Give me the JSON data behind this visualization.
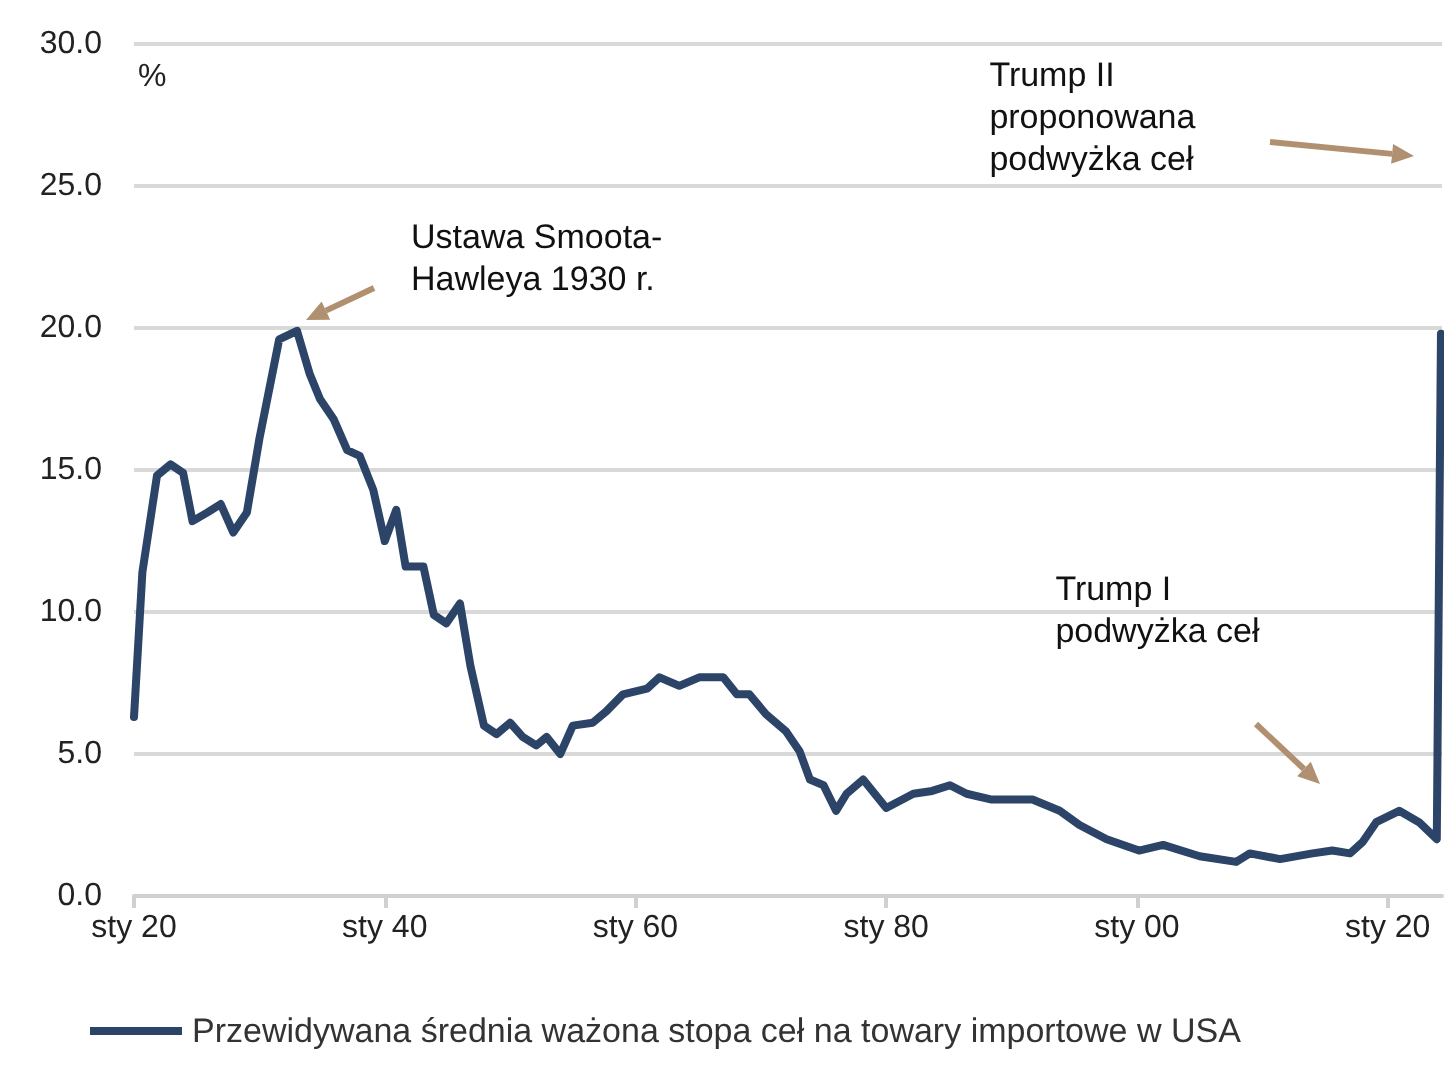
{
  "chart_data": {
    "type": "line",
    "ylabel": "%",
    "annotations": [
      "Ustawa Smoota-\nHawleya 1930 r.",
      "Trump I\npodwyżka ceł",
      "Trump II\nproponowana\npodwyżka ceł"
    ],
    "series": [
      {
        "name": "Przewidywana średnia ważona stopa ceł na towary importowe w USA",
        "color": "#2b4468",
        "x": [
          "1920-01",
          "1920-09",
          "1921-11",
          "1922-12",
          "1923-12",
          "1924-09",
          "1925-11",
          "1926-12",
          "1927-12",
          "1929-01",
          "1930-01",
          "1931-08",
          "1933-01",
          "1934-01",
          "1934-11",
          "1935-12",
          "1937-01",
          "1938-01",
          "1939-02",
          "1940-01",
          "1940-12",
          "1941-09",
          "1943-02",
          "1943-12",
          "1944-12",
          "1946-01",
          "1946-11",
          "1947-12",
          "1948-12",
          "1950-01",
          "1951-01",
          "1952-02",
          "1952-12",
          "1954-01",
          "1955-01",
          "1956-08",
          "1957-09",
          "1959-01",
          "1960-12",
          "1961-12",
          "1963-07",
          "1965-02",
          "1967-01",
          "1968-02",
          "1969-02",
          "1970-06",
          "1972-01",
          "1973-02",
          "1973-12",
          "1975-01",
          "1976-01",
          "1976-11",
          "1978-03",
          "1980-01",
          "1982-03",
          "1983-09",
          "1985-02",
          "1986-06",
          "1988-05",
          "1990-02",
          "1991-09",
          "1993-11",
          "1995-06",
          "1997-08",
          "2000-03",
          "2002-02",
          "2005-01",
          "2007-12",
          "2009-01",
          "2011-06",
          "2014-01",
          "2015-08",
          "2017-01",
          "2018-01",
          "2019-02",
          "2020-12",
          "2022-07",
          "2023-12",
          "2024-04"
        ],
        "values": [
          6.3,
          11.4,
          14.8,
          15.2,
          14.9,
          13.2,
          13.5,
          13.8,
          12.8,
          13.5,
          16.1,
          19.6,
          19.9,
          18.4,
          17.5,
          16.8,
          15.7,
          15.5,
          14.3,
          12.5,
          13.6,
          11.6,
          11.6,
          9.9,
          9.6,
          10.3,
          8.1,
          6.0,
          5.7,
          6.1,
          5.6,
          5.3,
          5.6,
          5.0,
          6.0,
          6.1,
          6.5,
          7.1,
          7.3,
          7.7,
          7.4,
          7.7,
          7.7,
          7.1,
          7.1,
          6.4,
          5.8,
          5.1,
          4.1,
          3.9,
          3.0,
          3.6,
          4.1,
          3.1,
          3.6,
          3.7,
          3.9,
          3.6,
          3.4,
          3.4,
          3.4,
          3.0,
          2.5,
          2.0,
          1.6,
          1.8,
          1.4,
          1.2,
          1.5,
          1.3,
          1.5,
          1.6,
          1.5,
          1.9,
          2.6,
          3.0,
          2.6,
          2.0,
          19.8
        ]
      }
    ],
    "xlim": [
      "1920-01",
      "2024-05"
    ],
    "xticks": [
      {
        "value": "1920-01",
        "label": "sty 20"
      },
      {
        "value": "1940-01",
        "label": "sty 40"
      },
      {
        "value": "1960-01",
        "label": "sty 60"
      },
      {
        "value": "1980-01",
        "label": "sty 80"
      },
      {
        "value": "2000-01",
        "label": "sty 00"
      },
      {
        "value": "2020-01",
        "label": "sty 20"
      }
    ],
    "ylim": [
      0,
      30
    ],
    "yticks": [
      {
        "value": 0,
        "label": "0.0"
      },
      {
        "value": 5,
        "label": "5.0"
      },
      {
        "value": 10,
        "label": "10.0"
      },
      {
        "value": 15,
        "label": "15.0"
      },
      {
        "value": 20,
        "label": "20.0"
      },
      {
        "value": 25,
        "label": "25.0"
      },
      {
        "value": 30,
        "label": "30.0"
      }
    ],
    "grid": "y",
    "legend": "bottom",
    "marker": "none",
    "line_style": "solid"
  }
}
